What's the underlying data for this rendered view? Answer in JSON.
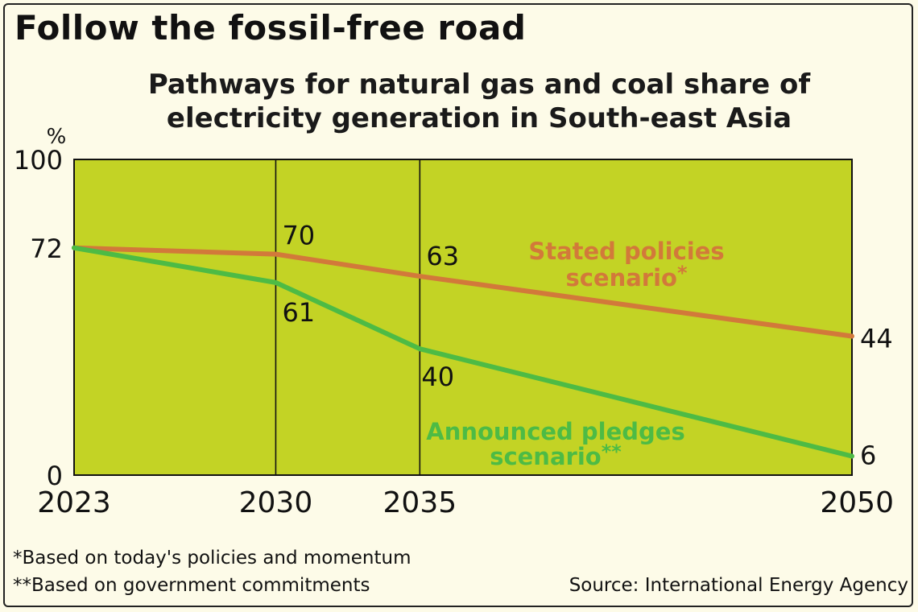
{
  "title": "Follow the fossil-free road",
  "subtitle": "Pathways for natural gas and coal share of electricity generation in South-east Asia",
  "footnotes": [
    "*Based on today's policies and momentum",
    "**Based on government commitments"
  ],
  "source": "Source: International Energy Agency",
  "colors": {
    "background": "#fdfbe8",
    "plot_fill": "#c3d325",
    "stated": "#d2793a",
    "announced": "#4dbb45",
    "axis": "#111111"
  },
  "chart_data": {
    "type": "line",
    "title": "Pathways for natural gas and coal share of electricity generation in South-east Asia",
    "ylabel": "%",
    "xlabel": "",
    "x": [
      2023,
      2030,
      2035,
      2050
    ],
    "xlim": [
      2023,
      2050
    ],
    "ylim": [
      0,
      100
    ],
    "y_tick_labels": [
      "0",
      "72",
      "100"
    ],
    "y_ticks": [
      0,
      72,
      100
    ],
    "x_tick_labels": [
      "2023",
      "2030",
      "2035",
      "2050"
    ],
    "vertical_gridlines_at": [
      2030,
      2035
    ],
    "series": [
      {
        "key": "stated",
        "name": "Stated policies scenario*",
        "name_lines": [
          "Stated policies",
          "scenario"
        ],
        "name_mark": "*",
        "values": [
          72,
          70,
          63,
          44
        ],
        "point_labels": [
          "",
          "70",
          "63",
          "44"
        ]
      },
      {
        "key": "announced",
        "name": "Announced pledges scenario**",
        "name_lines": [
          "Announced pledges",
          "scenario"
        ],
        "name_mark": "**",
        "values": [
          72,
          61,
          40,
          6
        ],
        "point_labels": [
          "",
          "61",
          "40",
          "6"
        ]
      }
    ]
  }
}
